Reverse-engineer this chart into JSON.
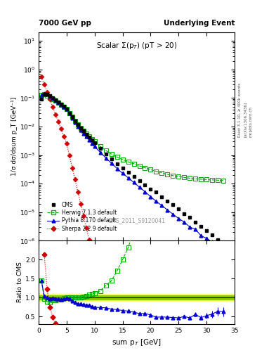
{
  "title_left": "7000 GeV pp",
  "title_right": "Underlying Event",
  "plot_title": "Scalar Σ(p_{T}) (pT > 20)",
  "ylabel_main": "1/σ dσ/dsum p_T [GeV⁻¹]",
  "ylabel_ratio": "Ratio to CMS",
  "xlabel": "sum p_{T} [GeV]",
  "watermark": "CMS_2011_S9120041",
  "rivet_text": "Rivet 3.1.10, ≥ 400k events",
  "arxiv_text": "[arXiv:1306.3436]",
  "mcplots_text": "mcplots.cern.ch",
  "cms_x": [
    0.5,
    1.0,
    1.5,
    2.0,
    2.5,
    3.0,
    3.5,
    4.0,
    4.5,
    5.0,
    5.5,
    6.0,
    6.5,
    7.0,
    7.5,
    8.0,
    8.5,
    9.0,
    9.5,
    10.0,
    11.0,
    12.0,
    13.0,
    14.0,
    15.0,
    16.0,
    17.0,
    18.0,
    19.0,
    20.0,
    21.0,
    22.0,
    23.0,
    24.0,
    25.0,
    26.0,
    27.0,
    28.0,
    29.0,
    30.0,
    31.0,
    32.0,
    33.0
  ],
  "cms_y": [
    0.09,
    0.14,
    0.135,
    0.12,
    0.1,
    0.086,
    0.073,
    0.062,
    0.051,
    0.042,
    0.03,
    0.022,
    0.016,
    0.012,
    0.009,
    0.007,
    0.0055,
    0.0043,
    0.0034,
    0.0027,
    0.0017,
    0.0011,
    0.00075,
    0.0005,
    0.00035,
    0.00025,
    0.00018,
    0.00013,
    9e-05,
    6.5e-05,
    5e-05,
    3.5e-05,
    2.5e-05,
    1.8e-05,
    1.3e-05,
    9e-06,
    6.5e-06,
    4.5e-06,
    3.2e-06,
    2.3e-06,
    1.6e-06,
    1.1e-06,
    8e-07
  ],
  "cms_yerr": [
    0.005,
    0.008,
    0.008,
    0.007,
    0.006,
    0.005,
    0.004,
    0.003,
    0.003,
    0.002,
    0.0015,
    0.001,
    0.0008,
    0.0006,
    0.0004,
    0.0003,
    0.00025,
    0.0002,
    0.00015,
    0.00012,
    8e-05,
    5e-05,
    3.5e-05,
    2.5e-05,
    1.5e-05,
    1.2e-05,
    9e-06,
    6e-06,
    4e-06,
    3e-06,
    2e-06,
    1.5e-06,
    1e-06,
    7e-07,
    5e-07,
    4e-07,
    3e-07,
    2e-07,
    1.5e-07,
    1e-07,
    8e-08,
    5e-08,
    3e-08
  ],
  "herwig_x": [
    0.5,
    1.0,
    1.5,
    2.0,
    2.5,
    3.0,
    3.5,
    4.0,
    4.5,
    5.0,
    5.5,
    6.0,
    6.5,
    7.0,
    7.5,
    8.0,
    8.5,
    9.0,
    9.5,
    10.0,
    11.0,
    12.0,
    13.0,
    14.0,
    15.0,
    16.0,
    17.0,
    18.0,
    19.0,
    20.0,
    21.0,
    22.0,
    23.0,
    24.0,
    25.0,
    26.0,
    27.0,
    28.0,
    29.0,
    30.0,
    31.0,
    32.0,
    33.0
  ],
  "herwig_y": [
    0.13,
    0.135,
    0.12,
    0.105,
    0.092,
    0.08,
    0.069,
    0.059,
    0.05,
    0.042,
    0.03,
    0.022,
    0.016,
    0.012,
    0.009,
    0.0072,
    0.0057,
    0.0046,
    0.0037,
    0.003,
    0.002,
    0.00145,
    0.00108,
    0.00085,
    0.0007,
    0.00058,
    0.0005,
    0.00042,
    0.00036,
    0.00031,
    0.00027,
    0.00024,
    0.00021,
    0.00019,
    0.00018,
    0.000165,
    0.000155,
    0.000148,
    0.000142,
    0.000138,
    0.000135,
    0.000132,
    0.000128
  ],
  "pythia_x": [
    0.5,
    1.0,
    1.5,
    2.0,
    2.5,
    3.0,
    3.5,
    4.0,
    4.5,
    5.0,
    5.5,
    6.0,
    6.5,
    7.0,
    7.5,
    8.0,
    8.5,
    9.0,
    9.5,
    10.0,
    11.0,
    12.0,
    13.0,
    14.0,
    15.0,
    16.0,
    17.0,
    18.0,
    19.0,
    20.0,
    21.0,
    22.0,
    23.0,
    24.0,
    25.0,
    26.0,
    27.0,
    28.0,
    29.0,
    30.0,
    31.0,
    32.0,
    33.0
  ],
  "pythia_y": [
    0.13,
    0.145,
    0.135,
    0.115,
    0.098,
    0.083,
    0.07,
    0.059,
    0.049,
    0.041,
    0.029,
    0.02,
    0.014,
    0.01,
    0.0075,
    0.0057,
    0.0044,
    0.0034,
    0.0026,
    0.002,
    0.00125,
    0.0008,
    0.00052,
    0.00034,
    0.00023,
    0.00016,
    0.00011,
    7.5e-05,
    5.2e-05,
    3.5e-05,
    2.4e-05,
    1.7e-05,
    1.2e-05,
    8.5e-06,
    6e-06,
    4.5e-06,
    3e-06,
    2.5e-06,
    1.5e-06,
    1.2e-06,
    9e-07,
    7e-07,
    5e-07
  ],
  "pythia_yerr": [
    0.004,
    0.005,
    0.005,
    0.004,
    0.003,
    0.003,
    0.002,
    0.002,
    0.002,
    0.001,
    0.001,
    0.0007,
    0.0005,
    0.0004,
    0.0003,
    0.0002,
    0.00015,
    0.00012,
    9e-05,
    7e-05,
    4e-05,
    2.5e-05,
    1.5e-05,
    1e-05,
    8e-06,
    5e-06,
    4e-06,
    3e-06,
    2e-06,
    1.5e-06,
    1.2e-06,
    9e-07,
    7e-07,
    6e-07,
    5e-07,
    4e-07,
    3e-07,
    2.5e-07,
    2e-07,
    1.8e-07,
    1.5e-07,
    1.2e-07,
    1e-07
  ],
  "sherpa_x": [
    0.5,
    1.0,
    1.5,
    2.0,
    2.5,
    3.0,
    3.5,
    4.0,
    4.5,
    5.0,
    5.5,
    6.0,
    6.5,
    7.0,
    7.5,
    8.0,
    8.5,
    9.0,
    9.5,
    10.0
  ],
  "sherpa_y": [
    0.55,
    0.3,
    0.165,
    0.09,
    0.049,
    0.027,
    0.015,
    0.0083,
    0.0046,
    0.0025,
    0.00095,
    0.00036,
    0.00014,
    5.2e-05,
    2e-05,
    7.5e-06,
    2.9e-06,
    1.1e-06,
    4.2e-07,
    1.6e-07
  ],
  "cms_color": "#000000",
  "herwig_color": "#00aa00",
  "pythia_color": "#0000cc",
  "sherpa_color": "#cc0000",
  "band_inner_color": "#88cc00",
  "band_outer_color": "#ffff80",
  "xlim": [
    0,
    35
  ],
  "ylim_main": [
    1e-06,
    20
  ],
  "ylim_ratio": [
    0.3,
    2.5
  ],
  "ratio_yticks": [
    0.5,
    1.0,
    1.5,
    2.0
  ],
  "legend_labels": [
    "CMS",
    "Herwig 7.1.3 default",
    "Pythia 8.170 default",
    "Sherpa 2.2.9 default"
  ]
}
